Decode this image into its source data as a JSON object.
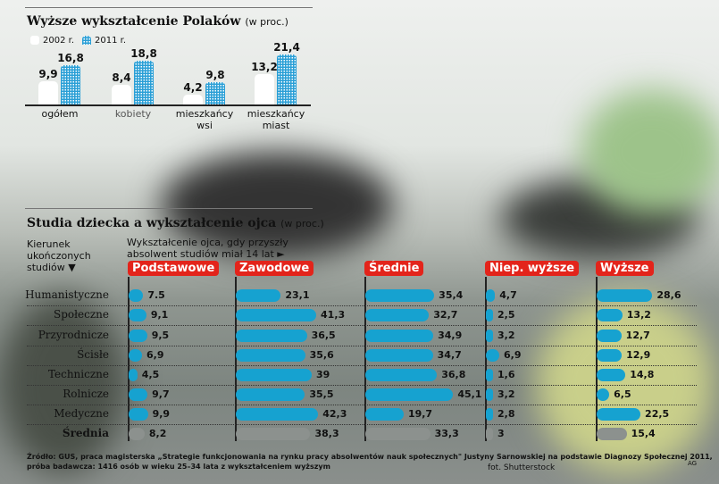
{
  "chart_data": [
    {
      "type": "bar",
      "title": "Wyższe wykształcenie Polaków",
      "unit": "(w proc.)",
      "legend": [
        "2002 r.",
        "2011 r."
      ],
      "categories": [
        "ogółem",
        "kobiety",
        "mieszkańcy wsi",
        "mieszkańcy miast"
      ],
      "series": [
        {
          "name": "2002 r.",
          "values": [
            9.9,
            8.4,
            4.2,
            13.2
          ],
          "labels": [
            "9,9",
            "8,4",
            "4,2",
            "13,2"
          ]
        },
        {
          "name": "2011 r.",
          "values": [
            16.8,
            18.8,
            9.8,
            21.4
          ],
          "labels": [
            "16,8",
            "18,8",
            "9,8",
            "21,4"
          ]
        }
      ]
    },
    {
      "type": "bar",
      "orientation": "horizontal",
      "title": "Studia  dziecka a wykształcenie ojca",
      "unit": "(w proc.)",
      "row_header": "Kierunek ukończonych studiów ▼",
      "col_header": "Wykształcenie ojca, gdy przyszły absolwent studiów miał 14 lat ►",
      "categories": [
        "Humanistyczne",
        "Społeczne",
        "Przyrodnicze",
        "Ścisłe",
        "Techniczne",
        "Rolnicze",
        "Medyczne",
        "Średnia"
      ],
      "series": [
        {
          "name": "Podstawowe",
          "values": [
            7.5,
            9.1,
            9.5,
            6.9,
            4.5,
            9.7,
            9.9,
            8.2
          ],
          "labels": [
            "7.5",
            "9,1",
            "9,5",
            "6,9",
            "4,5",
            "9,7",
            "9,9",
            "8,2"
          ]
        },
        {
          "name": "Zawodowe",
          "values": [
            23.1,
            41.3,
            36.5,
            35.6,
            39,
            35.5,
            42.3,
            38.3
          ],
          "labels": [
            "23,1",
            "41,3",
            "36,5",
            "35,6",
            "39",
            "35,5",
            "42,3",
            "38,3"
          ]
        },
        {
          "name": "Średnie",
          "values": [
            35.4,
            32.7,
            34.9,
            34.7,
            36.8,
            45.1,
            19.7,
            33.3
          ],
          "labels": [
            "35,4",
            "32,7",
            "34,9",
            "34,7",
            "36,8",
            "45,1",
            "19,7",
            "33,3"
          ]
        },
        {
          "name": "Niep. wyższe",
          "values": [
            4.7,
            2.5,
            3.2,
            6.9,
            1.6,
            3.2,
            2.8,
            3
          ],
          "labels": [
            "4,7",
            "2,5",
            "3,2",
            "6,9",
            "1,6",
            "3,2",
            "2,8",
            "3"
          ]
        },
        {
          "name": "Wyższe",
          "values": [
            28.6,
            13.2,
            12.7,
            12.9,
            14.8,
            6.5,
            22.5,
            15.4
          ],
          "labels": [
            "28,6",
            "13,2",
            "12,7",
            "12,9",
            "14,8",
            "6,5",
            "22,5",
            "15,4"
          ]
        }
      ]
    }
  ],
  "footer": {
    "source1": "Źródło: GUS, praca magisterska „Strategie funkcjonowania na rynku pracy absolwentów nauk społecznych\"  Justyny Sarnowskiej na podstawie Diagnozy Społecznej 2011,",
    "source2": "próba badawcza: 1416 osób w wieku 25–34 lata z wykształceniem wyższym",
    "photo": "fot. Shutterstock",
    "author": "AG"
  },
  "colors": {
    "bar": "#16a2d0",
    "label": "#e3241b"
  }
}
